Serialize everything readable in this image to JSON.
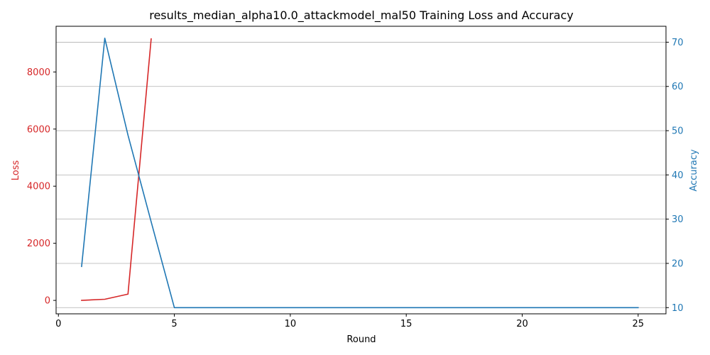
{
  "chart_data": {
    "type": "line",
    "title": "results_median_alpha10.0_attackmodel_mal50 Training Loss and Accuracy",
    "xlabel": "Round",
    "ylabel_left": "Loss",
    "ylabel_right": "Accuracy",
    "xlim": [
      -0.1,
      26.2
    ],
    "ylim_left": [
      -470,
      9600
    ],
    "ylim_right": [
      8.6,
      73.6
    ],
    "x_ticks": [
      0,
      5,
      10,
      15,
      20,
      25
    ],
    "y_ticks_left": [
      0,
      2000,
      4000,
      6000,
      8000
    ],
    "y_ticks_right": [
      10,
      20,
      30,
      40,
      50,
      60,
      70
    ],
    "grid": "horizontal-right-axis",
    "series": [
      {
        "name": "Loss",
        "axis": "left",
        "color": "#d62728",
        "x": [
          1,
          2,
          3,
          4
        ],
        "values": [
          2,
          40,
          220,
          9160
        ]
      },
      {
        "name": "Accuracy",
        "axis": "right",
        "color": "#1f77b4",
        "x": [
          1,
          2,
          3,
          4,
          5,
          6,
          7,
          8,
          9,
          10,
          11,
          12,
          13,
          14,
          15,
          16,
          17,
          18,
          19,
          20,
          21,
          22,
          23,
          24,
          25
        ],
        "values": [
          19.3,
          70.9,
          49.0,
          29.4,
          10.0,
          10.0,
          10.0,
          10.0,
          10.0,
          10.0,
          10.0,
          10.0,
          10.0,
          10.0,
          10.0,
          10.0,
          10.0,
          10.0,
          10.0,
          10.0,
          10.0,
          10.0,
          10.0,
          10.0,
          10.0
        ]
      }
    ]
  }
}
